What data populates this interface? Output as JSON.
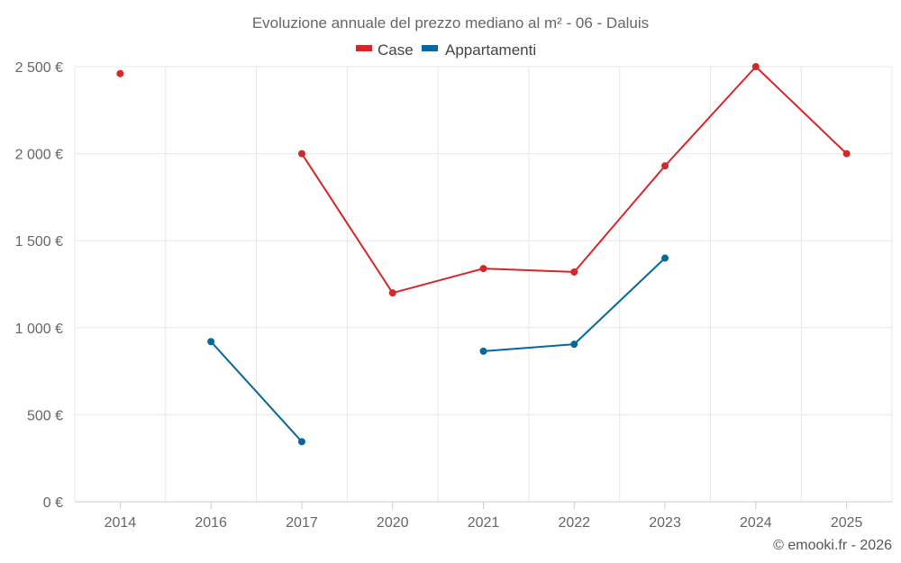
{
  "chart_data": {
    "type": "line",
    "title": "Evoluzione annuale del prezzo mediano al m² - 06 - Daluis",
    "categories": [
      "2014",
      "2016",
      "2017",
      "2020",
      "2021",
      "2022",
      "2023",
      "2024",
      "2025"
    ],
    "series": [
      {
        "name": "Case",
        "color": "#d62728",
        "values": [
          2460,
          null,
          2000,
          1200,
          1340,
          1320,
          1930,
          2500,
          2000
        ]
      },
      {
        "name": "Appartamenti",
        "color": "#08679c",
        "values": [
          null,
          920,
          345,
          null,
          865,
          905,
          1400,
          null,
          null
        ]
      }
    ],
    "ylim": [
      0,
      2500
    ],
    "yticks": [
      0,
      500,
      1000,
      1500,
      2000,
      2500
    ],
    "ytick_labels": [
      "0 €",
      "500 €",
      "1 000 €",
      "1 500 €",
      "2 000 €",
      "2 500 €"
    ],
    "legend_position": "top-center",
    "grid": true,
    "credit": "© emooki.fr - 2026"
  }
}
